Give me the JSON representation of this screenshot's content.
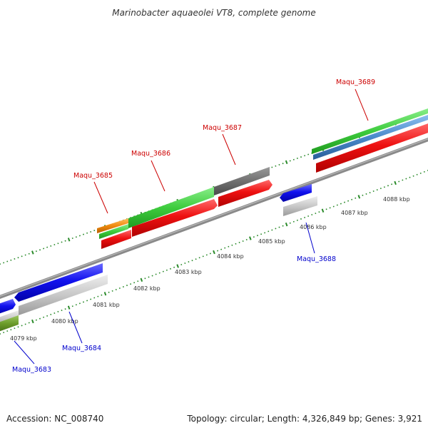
{
  "title": "Marinobacter aquaeolei VT8, complete genome",
  "footer": {
    "accession": "Accession: NC_008740",
    "summary": "Topology: circular; Length: 4,326,849 bp; Genes: 3,921"
  },
  "kbp_labels": [
    "4079 kbp",
    "4080 kbp",
    "4081 kbp",
    "4082 kbp",
    "4083 kbp",
    "4084 kbp",
    "4085 kbp",
    "4086 kbp",
    "4087 kbp",
    "4088 kbp"
  ],
  "genes": [
    {
      "id": "Maqu_3683",
      "strand": "reverse",
      "label_color": "#0000cc"
    },
    {
      "id": "Maqu_3684",
      "strand": "reverse",
      "label_color": "#0000cc"
    },
    {
      "id": "Maqu_3685",
      "strand": "forward",
      "label_color": "#cc0000"
    },
    {
      "id": "Maqu_3686",
      "strand": "forward",
      "label_color": "#cc0000"
    },
    {
      "id": "Maqu_3687",
      "strand": "forward",
      "label_color": "#cc0000"
    },
    {
      "id": "Maqu_3688",
      "strand": "reverse",
      "label_color": "#0000cc"
    },
    {
      "id": "Maqu_3689",
      "strand": "forward",
      "label_color": "#cc0000"
    }
  ],
  "colors": {
    "cds_forward": "#ee1111",
    "cds_reverse": "#1111ee",
    "gene_gray": "#c8c8c8",
    "gene_dark": "#707070",
    "cog_green": "#3ecc3e",
    "cog_orange": "#f08a10",
    "cog_olive": "#6a9a2a",
    "cog_steel": "#4a8acb",
    "backbone": "#8a8a8a",
    "ticks": "#2a8a2a"
  }
}
